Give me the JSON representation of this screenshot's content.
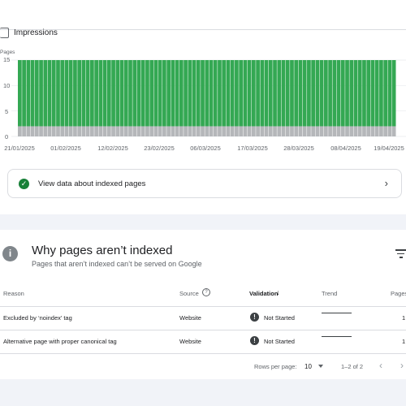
{
  "performance": {
    "checkbox_label": "Impressions",
    "y_axis_title": "Pages",
    "view_indexed_label": "View data about indexed pages"
  },
  "chart_data": {
    "type": "bar",
    "stacked": true,
    "ylabel": "Pages",
    "ylim": [
      0,
      15
    ],
    "yticks": [
      "15",
      "10",
      "5",
      "0"
    ],
    "xticks": [
      "21/01/2025",
      "01/02/2025",
      "12/02/2025",
      "23/02/2025",
      "06/03/2025",
      "17/03/2025",
      "28/03/2025",
      "08/04/2025",
      "19/04/2025"
    ],
    "date_range": [
      "21/01/2025",
      "19/04/2025"
    ],
    "series": [
      {
        "values": [
          2
        ],
        "color": "#b5b7ba"
      },
      {
        "values": [
          13
        ],
        "color": "#34a853"
      }
    ],
    "note_values": "Constant daily: 2 not-indexed (grey) + 13 indexed (green) = 15 pages per day"
  },
  "why_section": {
    "title": "Why pages aren’t indexed",
    "subtitle": "Pages that aren’t indexed can’t be served on Google",
    "columns": [
      "Reason",
      "Source",
      "Validation",
      "Trend",
      "Pages"
    ],
    "rows": [
      {
        "reason": "Excluded by ‘noindex’ tag",
        "source": "Website",
        "validation": "Not Started",
        "pages": "1"
      },
      {
        "reason": "Alternative page with proper canonical tag",
        "source": "Website",
        "validation": "Not Started",
        "pages": "1"
      }
    ],
    "pagination": {
      "rows_per_page_label": "Rows per page:",
      "rows_per_page_value": "10",
      "range_text": "1–2 of 2"
    }
  },
  "colors": {
    "indexed": "#34a853",
    "not_indexed": "#b5b7ba",
    "success": "#188038"
  }
}
